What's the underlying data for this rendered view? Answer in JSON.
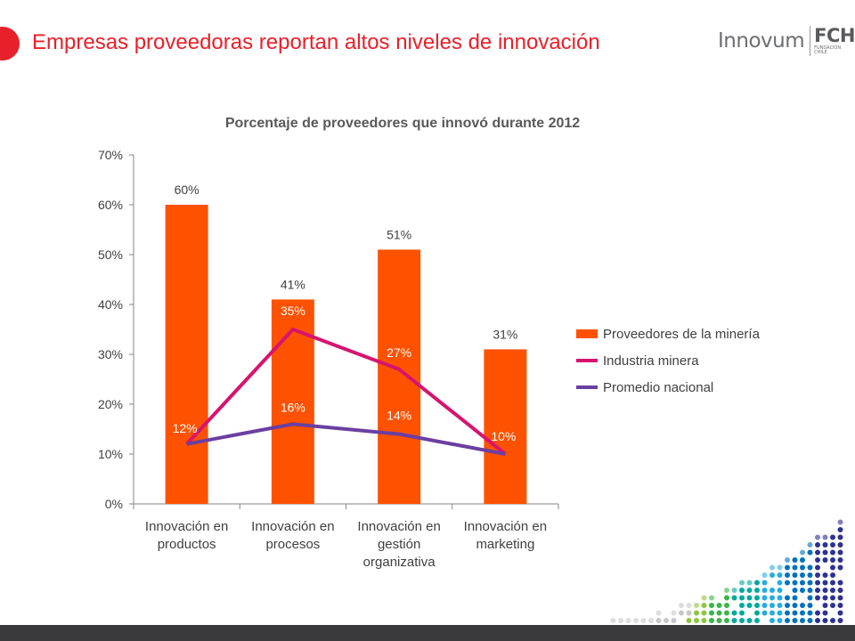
{
  "slide": {
    "title": "Empresas proveedoras reportan altos niveles de innovación",
    "logo_brand": "Innovum",
    "logo_fch": "FCH",
    "logo_sub": "FUNDACIÓN CHILE",
    "accent_color": "#e8202a"
  },
  "chart_data": {
    "type": "bar",
    "title": "Porcentaje de proveedores que innovó durante 2012",
    "categories": [
      [
        "Innovación en",
        "productos"
      ],
      [
        "Innovación en",
        "procesos"
      ],
      [
        "Innovación en",
        "gestión",
        "organizativa"
      ],
      [
        "Innovación en",
        "marketing"
      ]
    ],
    "ylim": [
      0,
      70
    ],
    "yticks": [
      0,
      10,
      20,
      30,
      40,
      50,
      60,
      70
    ],
    "ytick_format": "%",
    "grid": false,
    "legend_position": "right",
    "series": [
      {
        "name": "Proveedores de la minería",
        "kind": "bar",
        "color": "#fe5200",
        "values": [
          60,
          41,
          51,
          31
        ],
        "labels": [
          "60%",
          "41%",
          "51%",
          "31%"
        ]
      },
      {
        "name": "Industria minera",
        "kind": "line",
        "color": "#d6146f",
        "values": [
          12,
          35,
          27,
          10
        ],
        "labels": [
          "12%",
          "35%",
          "27%",
          "10%"
        ]
      },
      {
        "name": "Promedio nacional",
        "kind": "line",
        "color": "#6a3fa1",
        "values": [
          12,
          16,
          14,
          10
        ],
        "labels": [
          "",
          "16%",
          "14%",
          ""
        ]
      }
    ]
  },
  "decoration": {
    "bottom_bar_color": "#3a3a3c",
    "dot_colors": [
      "#e8202a",
      "#f15a24",
      "#f7941d",
      "#f9c01f",
      "#c5d82f",
      "#8cc63f",
      "#39b54a",
      "#00a99d",
      "#29abe2",
      "#0071bc",
      "#2e3192",
      "#c7c7c7"
    ]
  }
}
